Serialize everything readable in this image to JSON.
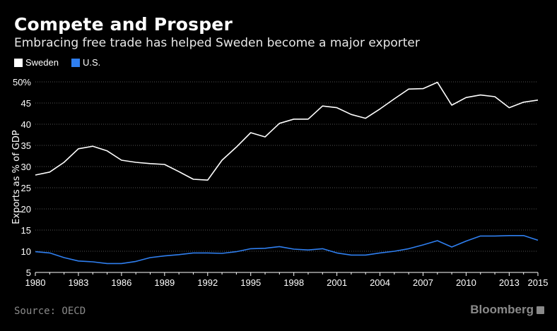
{
  "header": {
    "title": "Compete and Prosper",
    "subtitle": "Embracing free trade has helped Sweden become a major exporter"
  },
  "legend": [
    {
      "label": "Sweden",
      "color": "#ffffff"
    },
    {
      "label": "U.S.",
      "color": "#2f7ff0"
    }
  ],
  "footer": {
    "source": "Source: OECD",
    "brand": "Bloomberg",
    "brand_icon": "bloomberg-terminal-icon"
  },
  "chart_data": {
    "type": "line",
    "title": "Compete and Prosper",
    "subtitle": "Embracing free trade has helped Sweden become a major exporter",
    "xlabel": "",
    "ylabel": "Exports as % of GDP",
    "xlim": [
      1980,
      2015
    ],
    "ylim": [
      5,
      50
    ],
    "x_ticks": [
      "1980",
      "1983",
      "1986",
      "1989",
      "1992",
      "1995",
      "1998",
      "2001",
      "2004",
      "2007",
      "2010",
      "2013",
      "2015"
    ],
    "y_ticks": [
      "50%",
      "45",
      "40",
      "35",
      "30",
      "25",
      "20",
      "15",
      "10",
      "5"
    ],
    "grid": true,
    "legend_position": "top-left",
    "x": [
      1980,
      1981,
      1982,
      1983,
      1984,
      1985,
      1986,
      1987,
      1988,
      1989,
      1990,
      1991,
      1992,
      1993,
      1994,
      1995,
      1996,
      1997,
      1998,
      1999,
      2000,
      2001,
      2002,
      2003,
      2004,
      2005,
      2006,
      2007,
      2008,
      2009,
      2010,
      2011,
      2012,
      2013,
      2014,
      2015
    ],
    "series": [
      {
        "name": "Sweden",
        "color": "#ffffff",
        "values": [
          28.0,
          28.7,
          31.0,
          34.2,
          34.8,
          33.7,
          31.5,
          31.0,
          30.7,
          30.5,
          28.8,
          27.0,
          26.8,
          31.5,
          34.6,
          38.0,
          37.0,
          40.2,
          41.2,
          41.2,
          44.3,
          43.9,
          42.3,
          41.4,
          43.6,
          46.0,
          48.3,
          48.4,
          49.9,
          44.5,
          46.3,
          46.9,
          46.5,
          43.9,
          45.2,
          45.7
        ]
      },
      {
        "name": "U.S.",
        "color": "#2f7ff0",
        "values": [
          9.9,
          9.6,
          8.5,
          7.7,
          7.5,
          7.1,
          7.1,
          7.6,
          8.5,
          8.9,
          9.2,
          9.6,
          9.6,
          9.5,
          9.9,
          10.6,
          10.7,
          11.1,
          10.5,
          10.3,
          10.6,
          9.6,
          9.1,
          9.1,
          9.6,
          10.0,
          10.6,
          11.5,
          12.5,
          11.0,
          12.4,
          13.6,
          13.6,
          13.7,
          13.7,
          12.6
        ]
      }
    ]
  }
}
